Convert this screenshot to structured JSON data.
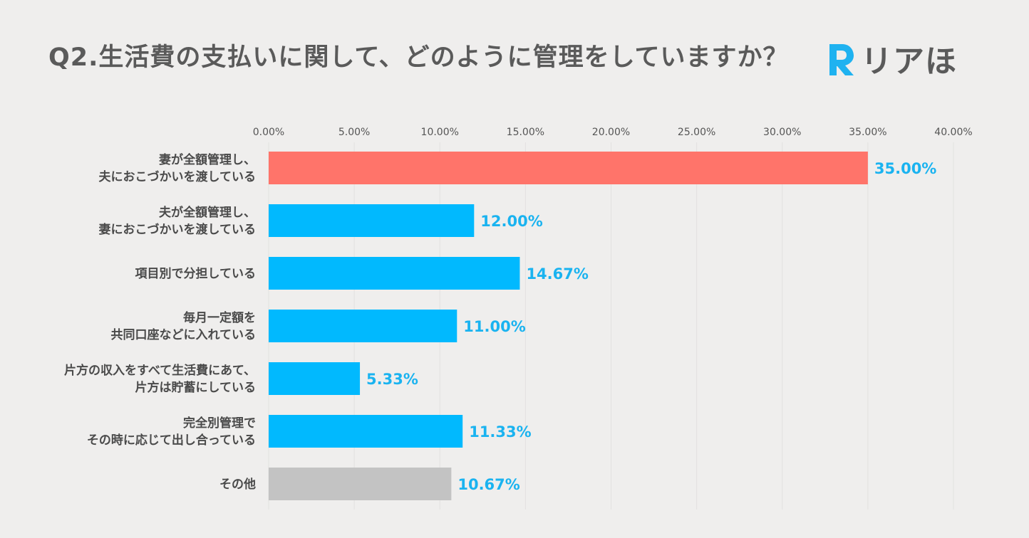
{
  "title": "Q2.生活費の支払いに関して、どのように管理をしていますか？",
  "logo": {
    "text": "リアほ",
    "letter": "R"
  },
  "colors": {
    "highlight": "#ff746a",
    "primary": "#01b9fe",
    "other": "#c3c3c3",
    "value_text": "#1ab3f0"
  },
  "chart_data": {
    "type": "bar",
    "orientation": "horizontal",
    "title": "Q2.生活費の支払いに関して、どのように管理をしていますか？",
    "xlim": [
      0,
      40
    ],
    "ticks": [
      "0.00%",
      "5.00%",
      "10.00%",
      "15.00%",
      "20.00%",
      "25.00%",
      "30.00%",
      "35.00%",
      "40.00%"
    ],
    "tick_values": [
      0,
      5,
      10,
      15,
      20,
      25,
      30,
      35,
      40
    ],
    "grid": true,
    "categories": [
      [
        "妻が全額管理し、",
        "夫におこづかいを渡している"
      ],
      [
        "夫が全額管理し、",
        "妻におこづかいを渡している"
      ],
      [
        "項目別で分担している"
      ],
      [
        "毎月一定額を",
        "共同口座などに入れている"
      ],
      [
        "片方の収入をすべて生活費にあて、",
        "片方は貯蓄にしている"
      ],
      [
        "完全別管理で",
        "その時に応じて出し合っている"
      ],
      [
        "その他"
      ]
    ],
    "values": [
      35.0,
      12.0,
      14.67,
      11.0,
      5.33,
      11.33,
      10.67
    ],
    "value_labels": [
      "35.00%",
      "12.00%",
      "14.67%",
      "11.00%",
      "5.33%",
      "11.33%",
      "10.67%"
    ],
    "bar_colors": [
      "highlight",
      "primary",
      "primary",
      "primary",
      "primary",
      "primary",
      "other"
    ]
  }
}
